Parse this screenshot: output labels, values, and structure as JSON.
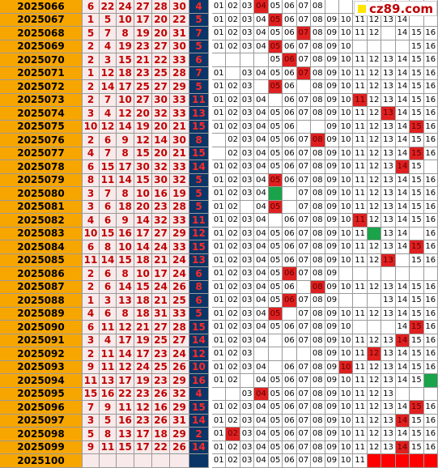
{
  "site_logo": {
    "text": "cz89.com"
  },
  "chart_data": {
    "type": "table",
    "number_range": [
      1,
      16
    ],
    "rows": [
      {
        "issue": "2025066",
        "reds": [
          6,
          22,
          24,
          27,
          28,
          30
        ],
        "blue": 4
      },
      {
        "issue": "2025067",
        "reds": [
          1,
          5,
          10,
          17,
          20,
          22
        ],
        "blue": 5
      },
      {
        "issue": "2025068",
        "reds": [
          5,
          7,
          8,
          19,
          20,
          31
        ],
        "blue": 7
      },
      {
        "issue": "2025069",
        "reds": [
          2,
          4,
          19,
          23,
          27,
          30
        ],
        "blue": 5
      },
      {
        "issue": "2025070",
        "reds": [
          2,
          3,
          15,
          21,
          22,
          33
        ],
        "blue": 6
      },
      {
        "issue": "2025071",
        "reds": [
          1,
          12,
          18,
          23,
          25,
          28
        ],
        "blue": 7
      },
      {
        "issue": "2025072",
        "reds": [
          2,
          14,
          17,
          25,
          27,
          29
        ],
        "blue": 5
      },
      {
        "issue": "2025073",
        "reds": [
          2,
          7,
          10,
          27,
          30,
          33
        ],
        "blue": 11
      },
      {
        "issue": "2025074",
        "reds": [
          3,
          4,
          12,
          20,
          32,
          33
        ],
        "blue": 13
      },
      {
        "issue": "2025075",
        "reds": [
          10,
          12,
          14,
          19,
          20,
          21
        ],
        "blue": 15
      },
      {
        "issue": "2025076",
        "reds": [
          2,
          6,
          9,
          12,
          14,
          30
        ],
        "blue": 8
      },
      {
        "issue": "2025077",
        "reds": [
          4,
          7,
          8,
          15,
          20,
          21
        ],
        "blue": 15
      },
      {
        "issue": "2025078",
        "reds": [
          6,
          15,
          17,
          30,
          32,
          33
        ],
        "blue": 14
      },
      {
        "issue": "2025079",
        "reds": [
          8,
          11,
          14,
          15,
          30,
          32
        ],
        "blue": 5
      },
      {
        "issue": "2025080",
        "reds": [
          3,
          7,
          8,
          10,
          16,
          19
        ],
        "blue": 5
      },
      {
        "issue": "2025081",
        "reds": [
          3,
          6,
          18,
          20,
          23,
          28
        ],
        "blue": 5
      },
      {
        "issue": "2025082",
        "reds": [
          4,
          6,
          9,
          14,
          32,
          33
        ],
        "blue": 11
      },
      {
        "issue": "2025083",
        "reds": [
          10,
          15,
          16,
          17,
          27,
          29
        ],
        "blue": 12
      },
      {
        "issue": "2025084",
        "reds": [
          6,
          8,
          10,
          14,
          24,
          33
        ],
        "blue": 15
      },
      {
        "issue": "2025085",
        "reds": [
          11,
          14,
          15,
          18,
          21,
          24
        ],
        "blue": 13
      },
      {
        "issue": "2025086",
        "reds": [
          2,
          6,
          8,
          10,
          17,
          24
        ],
        "blue": 6
      },
      {
        "issue": "2025087",
        "reds": [
          2,
          6,
          14,
          15,
          24,
          26
        ],
        "blue": 8
      },
      {
        "issue": "2025088",
        "reds": [
          1,
          3,
          13,
          18,
          21,
          25
        ],
        "blue": 6
      },
      {
        "issue": "2025089",
        "reds": [
          4,
          6,
          8,
          18,
          31,
          33
        ],
        "blue": 5
      },
      {
        "issue": "2025090",
        "reds": [
          6,
          11,
          12,
          21,
          27,
          28
        ],
        "blue": 15
      },
      {
        "issue": "2025091",
        "reds": [
          3,
          4,
          17,
          19,
          25,
          27
        ],
        "blue": 14
      },
      {
        "issue": "2025092",
        "reds": [
          2,
          11,
          14,
          17,
          23,
          24
        ],
        "blue": 12
      },
      {
        "issue": "2025093",
        "reds": [
          9,
          11,
          12,
          24,
          25,
          26
        ],
        "blue": 10
      },
      {
        "issue": "2025094",
        "reds": [
          11,
          13,
          17,
          19,
          23,
          29
        ],
        "blue": 16
      },
      {
        "issue": "2025095",
        "reds": [
          15,
          16,
          22,
          23,
          26,
          32
        ],
        "blue": 4
      },
      {
        "issue": "2025096",
        "reds": [
          7,
          9,
          11,
          12,
          16,
          29
        ],
        "blue": 15
      },
      {
        "issue": "2025097",
        "reds": [
          3,
          5,
          16,
          23,
          26,
          31
        ],
        "blue": 14
      },
      {
        "issue": "2025098",
        "reds": [
          5,
          8,
          13,
          17,
          18,
          29
        ],
        "blue": 2
      },
      {
        "issue": "2025099",
        "reds": [
          9,
          11,
          15,
          17,
          22,
          26
        ],
        "blue": 14
      },
      {
        "issue": "2025100",
        "reds": [],
        "blue": null
      }
    ],
    "missing": [
      "01 02 03 04 05 06 07 08",
      "01 02 03 04 05 06 07 08 09 10 11 12 13 14",
      "01 02 03 04 05 06 07 08 09 10 11 12 14 15 16",
      "01 02 03 04 05 06 07 08 09 10 15 16",
      "05 06 07 08 09 10 11 12 13 14 15 16",
      "01 03 04 05 06 07 08 09 10 11 12 13 14 15 16",
      "01 02 03 05 06 08 09 10 11 12 13 14 15 16",
      "01 02 03 04 06 07 08 09 10 11 12 13 14 15 16",
      "01 02 03 04 05 06 07 08 09 10 11 12 13 14 15 16",
      "01 02 03 04 05 06 09 10 11 12 13 14 15 16",
      "02 03 04 05 06 07 08 09 10 11 12 13 14 15 16",
      "02 03 04 05 06 07 08 09 10 11 12 13 14 15 16",
      "01 02 03 04 05 06 07 08 09 10 11 12 13 14 15",
      "01 02 03 04 05 06 07 08 09 10 11 12 13 14 15 16",
      "01 02 03 04 07 08 09 10 11 12 13 14 15 16",
      "01 02 04 05 07 08 09 10 11 12 13 14 15 16",
      "01 02 03 04 06 07 08 09 10 11 12 13 14 15 16",
      "01 02 03 04 05 06 07 08 09 10 11 13 14 16",
      "01 02 03 04 05 06 07 08 09 10 11 12 13 14 15 16",
      "01 02 03 04 05 06 07 08 09 10 11 12 13 15 16",
      "01 02 03 04 05 06 07 08 09",
      "01 02 03 04 05 06 08 09 10 11 12 13 14 15 16",
      "01 02 03 04 05 06 07 08 09 13 14 15 16",
      "01 02 03 04 05 07 08 09 10 11 12 13 14 15 16",
      "01 02 03 04 05 06 07 08 09 10 14 15 16",
      "01 02 03 04 06 07 08 09 10 11 12 13 14 15 16",
      "01 02 03 08 09 10 11 12 13 14 15 16",
      "01 02 03 04 06 07 08 09 10 11 12 13 14 15 16",
      "01 02 04 05 06 07 08 09 10 11 12 13 14 15 16",
      "03 04 05 06 07 08 09 10 11 12 13",
      "01 02 03 04 05 06 07 08 09 10 11 12 13 14 15 16",
      "01 02 03 04 05 06 07 08 09 10 11 12 13 14 15 16",
      "01 02 03 04 05 06 07 08 09 10 11 12 13 14 15 16",
      "01 02 03 04 05 06 07 08 09 10 11 12 13 14 15 16",
      "01 02 03 04 05 06 07 08 09 10 11"
    ],
    "green_cells": [
      {
        "issue": "2025080",
        "number": 5
      },
      {
        "issue": "2025083",
        "number": 12
      },
      {
        "issue": "2025094",
        "number": 16
      }
    ],
    "next_issue_red_cells": [
      12,
      13,
      14,
      15,
      16
    ],
    "colors": {
      "issue_bg": "#f7a600",
      "red_cell_bg": "#f8eaea",
      "red_text": "#c00000",
      "blue_col_bg": "#0b3566",
      "blue_text": "#ff2a2a",
      "hit_bg": "#e02020",
      "green_hit": "#1aa34a",
      "grid": "#9a9a9a"
    }
  }
}
